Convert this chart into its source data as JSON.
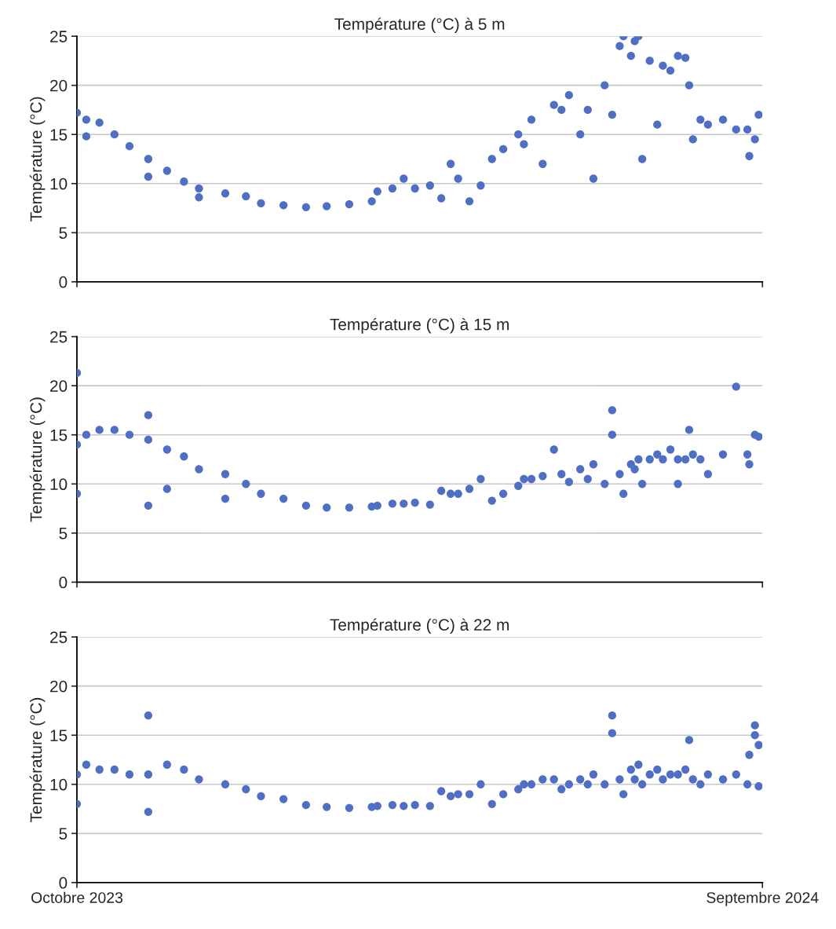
{
  "chart_data": [
    {
      "type": "scatter",
      "title": "Température (°C) à 5 m",
      "ylabel": "Température (°C)",
      "color": "#4f6fc4",
      "marker": "circle",
      "grid": "y",
      "tick_labels": "y",
      "xlim": [
        "2023-10-01",
        "2024-09-30"
      ],
      "xticks": [
        {
          "value": "2023-10-01",
          "label": null
        },
        {
          "value": "2024-09-30",
          "label": null
        }
      ],
      "ylim": [
        0,
        25
      ],
      "yticks": [
        0,
        5,
        10,
        15,
        20,
        25
      ],
      "x": [
        "2023-10-01",
        "2023-10-06",
        "2023-10-13",
        "2023-10-21",
        "2023-10-29",
        "2023-11-08",
        "2023-11-18",
        "2023-11-27",
        "2023-12-05",
        "2023-12-19",
        "2023-12-30",
        "2024-01-07",
        "2024-01-19",
        "2024-01-31",
        "2024-02-11",
        "2024-02-23",
        "2024-03-06",
        "2024-03-09",
        "2024-03-17",
        "2024-03-23",
        "2024-03-29",
        "2024-04-06",
        "2024-04-12",
        "2024-04-17",
        "2024-04-21",
        "2024-04-27",
        "2024-05-03",
        "2024-05-09",
        "2024-05-15",
        "2024-05-23",
        "2024-05-26",
        "2024-05-30",
        "2024-06-05",
        "2024-06-11",
        "2024-06-15",
        "2024-06-19",
        "2024-06-25",
        "2024-06-29",
        "2024-07-02",
        "2024-07-08",
        "2024-07-12",
        "2024-07-16",
        "2024-07-18",
        "2024-07-22",
        "2024-07-24",
        "2024-07-26",
        "2024-07-28",
        "2024-08-01",
        "2024-08-05",
        "2024-08-08",
        "2024-08-12",
        "2024-08-16",
        "2024-08-20",
        "2024-08-22",
        "2024-08-24",
        "2024-08-28",
        "2024-09-01",
        "2024-09-09",
        "2024-09-16",
        "2024-09-22",
        "2024-09-23",
        "2024-09-26",
        "2024-09-28",
        "2023-10-06",
        "2023-11-08",
        "2023-12-05"
      ],
      "values": [
        17.2,
        16.5,
        16.2,
        15,
        13.8,
        12.5,
        11.3,
        10.2,
        9.5,
        9.0,
        8.7,
        8.0,
        7.8,
        7.6,
        7.7,
        7.9,
        8.2,
        9.2,
        9.5,
        10.5,
        9.5,
        9.8,
        8.5,
        12.0,
        10.5,
        8.2,
        9.8,
        12.5,
        13.5,
        15,
        14,
        16.5,
        12,
        18,
        17.5,
        19,
        15,
        17.5,
        10.5,
        20,
        17,
        24,
        25,
        23,
        24.5,
        25,
        12.5,
        22.5,
        16,
        22,
        21.5,
        23,
        22.8,
        20,
        14.5,
        16.5,
        16,
        16.5,
        15.5,
        15.5,
        12.8,
        14.5,
        17,
        14.8,
        10.7,
        8.6
      ]
    },
    {
      "type": "scatter",
      "title": "Température (°C) à 15 m",
      "ylabel": "Température (°C)",
      "color": "#4f6fc4",
      "marker": "circle",
      "grid": "y",
      "tick_labels": "y",
      "xlim": [
        "2023-10-01",
        "2024-09-30"
      ],
      "xticks": [
        {
          "value": "2023-10-01",
          "label": null
        },
        {
          "value": "2024-09-30",
          "label": null
        }
      ],
      "ylim": [
        0,
        25
      ],
      "yticks": [
        0,
        5,
        10,
        15,
        20,
        25
      ],
      "x": [
        "2023-10-01",
        "2023-10-06",
        "2023-10-13",
        "2023-10-21",
        "2023-10-29",
        "2023-11-08",
        "2023-11-18",
        "2023-11-27",
        "2023-12-05",
        "2023-12-19",
        "2023-12-30",
        "2024-01-07",
        "2024-01-19",
        "2024-01-31",
        "2024-02-11",
        "2024-02-23",
        "2024-03-06",
        "2024-03-09",
        "2024-03-17",
        "2024-03-23",
        "2024-03-29",
        "2024-04-06",
        "2024-04-12",
        "2024-04-17",
        "2024-04-21",
        "2024-04-27",
        "2024-05-03",
        "2024-05-09",
        "2024-05-15",
        "2024-05-23",
        "2024-05-26",
        "2024-05-30",
        "2024-06-05",
        "2024-06-11",
        "2024-06-15",
        "2024-06-19",
        "2024-06-25",
        "2024-06-29",
        "2024-07-02",
        "2024-07-08",
        "2024-07-12",
        "2024-07-16",
        "2024-07-18",
        "2024-07-22",
        "2024-07-24",
        "2024-07-26",
        "2024-07-28",
        "2024-08-01",
        "2024-08-05",
        "2024-08-08",
        "2024-08-12",
        "2024-08-16",
        "2024-08-20",
        "2024-08-22",
        "2024-08-24",
        "2024-08-28",
        "2024-09-01",
        "2024-09-09",
        "2024-09-16",
        "2024-09-22",
        "2024-09-23",
        "2024-09-26",
        "2024-09-28",
        "2023-10-01",
        "2023-10-01",
        "2023-11-08",
        "2023-11-08",
        "2023-11-18",
        "2023-12-19",
        "2024-07-12",
        "2024-08-16"
      ],
      "values": [
        14,
        15,
        15.5,
        15.5,
        15,
        14.5,
        13.5,
        12.8,
        11.5,
        11,
        10,
        9,
        8.5,
        7.8,
        7.6,
        7.6,
        7.7,
        7.8,
        8.0,
        8.0,
        8.1,
        7.9,
        9.3,
        9.0,
        9.0,
        9.5,
        10.5,
        8.3,
        9.0,
        9.8,
        10.5,
        10.5,
        10.8,
        13.5,
        11,
        10.2,
        11.5,
        10.5,
        12,
        10,
        17.5,
        11,
        9,
        12,
        11.5,
        12.5,
        10,
        12.5,
        13,
        12.5,
        13.5,
        12.5,
        12.5,
        15.5,
        13,
        12.5,
        11,
        13,
        19.9,
        13,
        12,
        15,
        14.8,
        21.3,
        9.0,
        7.8,
        17.0,
        9.5,
        8.5,
        15.0,
        10.0
      ]
    },
    {
      "type": "scatter",
      "title": "Température (°C) à 22 m",
      "ylabel": "Température (°C)",
      "color": "#4f6fc4",
      "marker": "circle",
      "grid": "y",
      "xlim": [
        "2023-10-01",
        "2024-09-30"
      ],
      "xticks": [
        {
          "value": "2023-10-01",
          "label": "Octobre 2023"
        },
        {
          "value": "2024-09-30",
          "label": "Septembre 2024"
        }
      ],
      "ylim": [
        0,
        25
      ],
      "yticks": [
        0,
        5,
        10,
        15,
        20,
        25
      ],
      "x": [
        "2023-10-01",
        "2023-10-06",
        "2023-10-13",
        "2023-10-21",
        "2023-10-29",
        "2023-11-08",
        "2023-11-18",
        "2023-11-27",
        "2023-12-05",
        "2023-12-19",
        "2023-12-30",
        "2024-01-07",
        "2024-01-19",
        "2024-01-31",
        "2024-02-11",
        "2024-02-23",
        "2024-03-06",
        "2024-03-09",
        "2024-03-17",
        "2024-03-23",
        "2024-03-29",
        "2024-04-06",
        "2024-04-12",
        "2024-04-17",
        "2024-04-21",
        "2024-04-27",
        "2024-05-03",
        "2024-05-09",
        "2024-05-15",
        "2024-05-23",
        "2024-05-26",
        "2024-05-30",
        "2024-06-05",
        "2024-06-11",
        "2024-06-15",
        "2024-06-19",
        "2024-06-25",
        "2024-06-29",
        "2024-07-02",
        "2024-07-08",
        "2024-07-12",
        "2024-07-16",
        "2024-07-18",
        "2024-07-22",
        "2024-07-24",
        "2024-07-26",
        "2024-07-28",
        "2024-08-01",
        "2024-08-05",
        "2024-08-08",
        "2024-08-12",
        "2024-08-16",
        "2024-08-20",
        "2024-08-22",
        "2024-08-24",
        "2024-08-28",
        "2024-09-01",
        "2024-09-09",
        "2024-09-16",
        "2024-09-22",
        "2024-09-23",
        "2024-09-26",
        "2024-09-28",
        "2023-11-08",
        "2023-11-08",
        "2023-10-01",
        "2024-07-12",
        "2024-09-28",
        "2024-09-26"
      ],
      "values": [
        11,
        12,
        11.5,
        11.5,
        11,
        11,
        12,
        11.5,
        10.5,
        10,
        9.5,
        8.8,
        8.5,
        7.9,
        7.7,
        7.6,
        7.7,
        7.8,
        7.9,
        7.8,
        7.9,
        7.8,
        9.3,
        8.8,
        9.0,
        9.0,
        10,
        8.0,
        9.0,
        9.5,
        10,
        10,
        10.5,
        10.5,
        9.5,
        10,
        10.5,
        10,
        11,
        10,
        17,
        10.5,
        9,
        11.5,
        10.5,
        12,
        10,
        11,
        11.5,
        10.5,
        11,
        11,
        11.5,
        14.5,
        10.5,
        10,
        11,
        10.5,
        11,
        10,
        13,
        15,
        14,
        7.2,
        17,
        8,
        15.2,
        9.8,
        16
      ]
    }
  ]
}
